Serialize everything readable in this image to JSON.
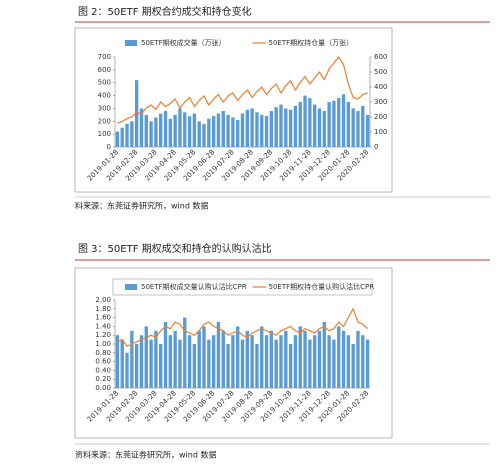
{
  "chart_data": [
    {
      "type": "combo",
      "title": "图 2：50ETF 期权合约成交和持仓变化",
      "source": "料来源：东莞证券研究所，wind 数据",
      "legend_box": false,
      "categories": [
        "2019-01-28",
        null,
        null,
        null,
        "2019-02-28",
        null,
        null,
        null,
        "2019-03-28",
        null,
        null,
        null,
        "2019-04-28",
        null,
        null,
        null,
        "2019-05-28",
        null,
        null,
        null,
        "2019-06-28",
        null,
        null,
        null,
        "2019-07-28",
        null,
        null,
        null,
        "2019-08-28",
        null,
        null,
        null,
        "2019-09-28",
        null,
        null,
        null,
        "2019-10-28",
        null,
        null,
        null,
        "2019-11-28",
        null,
        null,
        null,
        "2019-12-28",
        null,
        null,
        null,
        "2020-01-28",
        null,
        null,
        null,
        "2020-02-28"
      ],
      "series": [
        {
          "name": "50ETF期权成交量（万张）",
          "kind": "bar",
          "color": "#5b9bd5",
          "values": [
            120,
            150,
            180,
            200,
            520,
            300,
            250,
            200,
            230,
            260,
            280,
            220,
            250,
            300,
            270,
            240,
            260,
            200,
            180,
            220,
            240,
            260,
            280,
            250,
            230,
            210,
            260,
            290,
            300,
            270,
            250,
            240,
            280,
            310,
            330,
            300,
            290,
            320,
            350,
            400,
            380,
            330,
            300,
            280,
            350,
            360,
            380,
            410,
            350,
            300,
            280,
            320,
            250
          ]
        },
        {
          "name": "50ETF期权持仓量（万张）",
          "kind": "line",
          "axis": "y2",
          "color": "#ed7d31",
          "values": [
            160,
            170,
            190,
            200,
            230,
            220,
            260,
            280,
            250,
            300,
            270,
            290,
            320,
            260,
            300,
            330,
            270,
            310,
            340,
            280,
            320,
            350,
            300,
            340,
            360,
            310,
            350,
            380,
            330,
            370,
            400,
            350,
            390,
            420,
            360,
            410,
            440,
            380,
            430,
            470,
            420,
            460,
            500,
            450,
            520,
            560,
            600,
            550,
            420,
            330,
            320,
            350,
            360
          ]
        }
      ],
      "ylim": [
        0,
        700
      ],
      "yticks": [
        0,
        100,
        200,
        300,
        400,
        500,
        600,
        700
      ],
      "y2lim": [
        0,
        600
      ],
      "y2ticks": [
        0,
        100,
        200,
        300,
        400,
        500,
        600
      ]
    },
    {
      "type": "combo",
      "title": "图 3：50ETF 期权成交和持仓的认购认沽比",
      "source": "资料来源：东莞证券研究所，wind 数据",
      "legend_box": true,
      "categories": [
        "2019-01-28",
        null,
        null,
        null,
        "2019-02-28",
        null,
        null,
        null,
        "2019-03-28",
        null,
        null,
        null,
        "2019-04-28",
        null,
        null,
        null,
        "2019-05-28",
        null,
        null,
        null,
        "2019-06-28",
        null,
        null,
        null,
        "2019-07-28",
        null,
        null,
        null,
        "2019-08-28",
        null,
        null,
        null,
        "2019-09-28",
        null,
        null,
        null,
        "2019-10-28",
        null,
        null,
        null,
        "2019-11-28",
        null,
        null,
        null,
        "2019-12-28",
        null,
        null,
        null,
        "2020-01-28",
        null,
        null,
        null,
        "2020-02-28"
      ],
      "series": [
        {
          "name": "50ETF期权成交量认购认沽比CPR",
          "kind": "bar",
          "color": "#5b9bd5",
          "values": [
            1.2,
            1.1,
            0.8,
            1.3,
            1.0,
            1.2,
            1.4,
            1.1,
            1.3,
            1.0,
            1.5,
            1.2,
            1.3,
            1.1,
            1.6,
            1.2,
            1.0,
            1.3,
            1.4,
            1.1,
            1.2,
            1.5,
            1.3,
            1.0,
            1.2,
            1.4,
            1.1,
            1.3,
            1.2,
            1.0,
            1.4,
            1.2,
            1.3,
            1.1,
            1.2,
            1.3,
            1.0,
            1.2,
            1.4,
            1.3,
            1.1,
            1.2,
            1.3,
            1.5,
            1.2,
            1.1,
            1.4,
            1.3,
            1.2,
            1.0,
            1.3,
            1.2,
            1.1
          ]
        },
        {
          "name": "50ETF期权持仓量认购认沽比CPR",
          "kind": "line",
          "color": "#ed7d31",
          "values": [
            1.05,
            1.1,
            0.95,
            1.0,
            1.05,
            1.1,
            1.15,
            1.2,
            1.15,
            1.3,
            1.4,
            1.35,
            1.5,
            1.45,
            1.3,
            1.25,
            1.2,
            1.3,
            1.45,
            1.5,
            1.4,
            1.35,
            1.3,
            1.2,
            1.25,
            1.3,
            1.2,
            1.15,
            1.25,
            1.3,
            1.35,
            1.3,
            1.25,
            1.2,
            1.3,
            1.35,
            1.4,
            1.3,
            1.25,
            1.35,
            1.3,
            1.25,
            1.35,
            1.4,
            1.3,
            1.35,
            1.5,
            1.4,
            1.6,
            1.8,
            1.5,
            1.45,
            1.35
          ]
        }
      ],
      "ylim": [
        0,
        2
      ],
      "yticks": [
        {
          "value": 0,
          "label": "0.00"
        },
        {
          "value": 0.2,
          "label": "0.20"
        },
        {
          "value": 0.4,
          "label": "0.40"
        },
        {
          "value": 0.6,
          "label": "0.60"
        },
        {
          "value": 0.8,
          "label": "0.80"
        },
        {
          "value": 1,
          "label": "1.00"
        },
        {
          "value": 1.2,
          "label": "1.20"
        },
        {
          "value": 1.4,
          "label": "1.40"
        },
        {
          "value": 1.6,
          "label": "1.60"
        },
        {
          "value": 1.8,
          "label": "1.80"
        },
        {
          "value": 2,
          "label": "2.00"
        }
      ]
    }
  ]
}
